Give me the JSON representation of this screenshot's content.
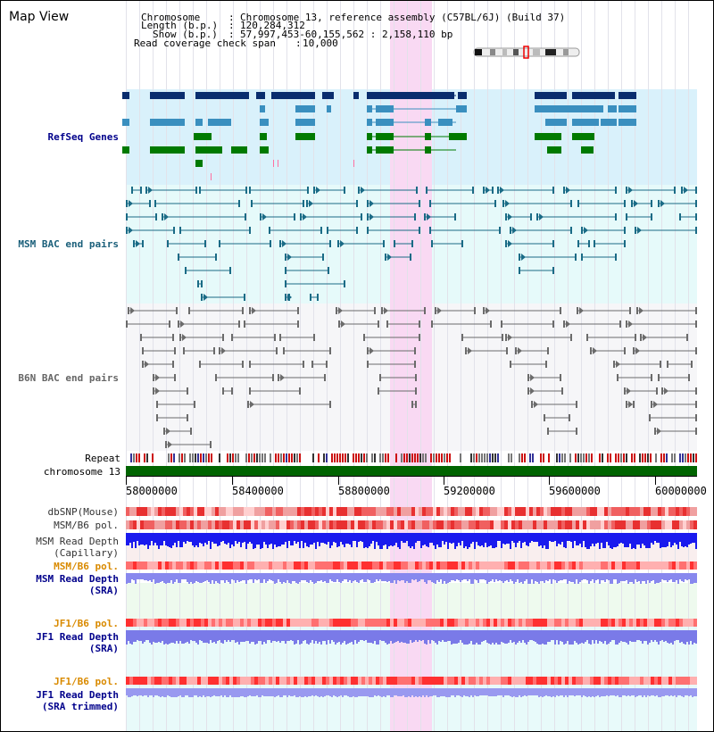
{
  "title": "Map View",
  "info": {
    "chromosome_key": "Chromosome",
    "chromosome_val": "Chromosome 13, reference assembly (C57BL/6J) (Build 37)",
    "length_key": "Length (b.p.)",
    "length_val": "120,284,312",
    "show_key": "Show (b.p.)",
    "show_val": "57,997,453-60,155,562 : 2,158,110 bp",
    "coverage_key": "Read coverage check span",
    "coverage_val": "10,000"
  },
  "tracks": {
    "refseq": "RefSeq Genes",
    "msm_bac": "MSM BAC end pairs",
    "b6n_bac": "B6N BAC end pairs",
    "repeat": "Repeat",
    "chromosome": "chromosome 13",
    "dbsnp": "dbSNP(Mouse)",
    "msm_b6_pol": "MSM/B6 pol.",
    "msm_read_depth_cap_1": "MSM Read Depth",
    "msm_read_depth_cap_2": "(Capillary)",
    "msm_b6_pol_sra": "MSM/B6 pol.",
    "msm_read_depth_sra_1": "MSM Read Depth",
    "msm_read_depth_sra_2": "(SRA)",
    "jf1_b6_pol": "JF1/B6 pol.",
    "jf1_read_depth_1": "JF1 Read Depth",
    "jf1_read_depth_2": "(SRA)",
    "jf1_b6_pol_2": "JF1/B6 pol.",
    "jf1_read_depth_trim_1": "JF1 Read Depth",
    "jf1_read_depth_trim_2": "(SRA trimmed)"
  },
  "axis": {
    "ticks": [
      "58000000",
      "58400000",
      "58800000",
      "59200000",
      "59600000",
      "60000000"
    ]
  },
  "colors": {
    "refseq_dark": "#0a2d6e",
    "refseq_mid": "#3a8fbf",
    "refseq_green": "#007a00",
    "msm_line": "#1a6b86",
    "b6n_line": "#6b6b6b",
    "chromosome": "#006400",
    "highlight": "#f9d9f3",
    "msm_label": "#00006b",
    "orange_label": "#d98a00",
    "blue_label": "#00008b"
  }
}
